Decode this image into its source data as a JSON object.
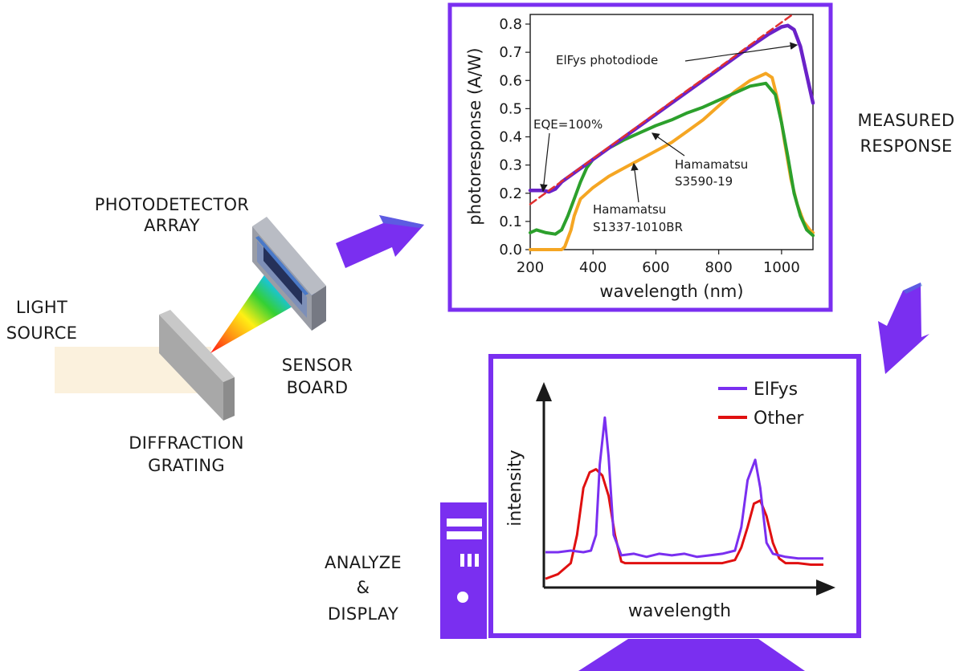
{
  "labels": {
    "light_source": [
      "LIGHT",
      "SOURCE"
    ],
    "photodetector_array": [
      "PHOTODETECTOR",
      "ARRAY"
    ],
    "sensor_board": [
      "SENSOR",
      "BOARD"
    ],
    "diffraction_grating": [
      "DIFFRACTION",
      "GRATING"
    ],
    "measured_response": [
      "MEASURED",
      "RESPONSE"
    ],
    "analyze_display": [
      "ANALYZE",
      "&",
      "DISPLAY"
    ]
  },
  "colors": {
    "accent": "#7a2ff0",
    "elfys": "#6a22c8",
    "hamamatsu_s3590": "#2ca02c",
    "hamamatsu_s1337": "#f5a623",
    "eqe": "#e03030",
    "other": "#e01010"
  },
  "chart_data": [
    {
      "type": "line",
      "xlabel": "wavelength (nm)",
      "ylabel": "photoresponse (A/W)",
      "xlim": [
        200,
        1100
      ],
      "ylim": [
        0,
        0.8
      ],
      "xticks": [
        "200",
        "400",
        "600",
        "800",
        "1000"
      ],
      "yticks": [
        "0.0",
        "0.1",
        "0.2",
        "0.3",
        "0.4",
        "0.5",
        "0.6",
        "0.7",
        "0.8"
      ],
      "annotations": [
        {
          "id": "elfys",
          "text": [
            "ElFys photodiode"
          ]
        },
        {
          "id": "eqe",
          "text": [
            "EQE=100%"
          ]
        },
        {
          "id": "s3590",
          "text": [
            "Hamamatsu",
            "S3590-19"
          ]
        },
        {
          "id": "s1337",
          "text": [
            "Hamamatsu",
            "S1337-1010BR"
          ]
        }
      ],
      "series": [
        {
          "id": "eqe",
          "style": "dashed",
          "x": [
            200,
            300,
            400,
            500,
            600,
            700,
            800,
            900,
            1000,
            1030
          ],
          "y": [
            0.161,
            0.242,
            0.323,
            0.403,
            0.484,
            0.565,
            0.645,
            0.726,
            0.806,
            0.83
          ]
        },
        {
          "id": "elfys",
          "x": [
            200,
            240,
            260,
            280,
            300,
            350,
            400,
            500,
            600,
            700,
            800,
            900,
            960,
            1000,
            1020,
            1040,
            1060,
            1080,
            1100
          ],
          "y": [
            0.21,
            0.21,
            0.205,
            0.215,
            0.24,
            0.28,
            0.32,
            0.4,
            0.48,
            0.56,
            0.64,
            0.72,
            0.765,
            0.79,
            0.795,
            0.78,
            0.72,
            0.62,
            0.52
          ]
        },
        {
          "id": "s3590",
          "x": [
            200,
            220,
            250,
            280,
            300,
            320,
            340,
            360,
            380,
            400,
            450,
            500,
            550,
            600,
            650,
            700,
            750,
            800,
            850,
            900,
            950,
            980,
            1000,
            1020,
            1040,
            1060,
            1080,
            1100
          ],
          "y": [
            0.06,
            0.07,
            0.06,
            0.055,
            0.07,
            0.12,
            0.18,
            0.24,
            0.29,
            0.32,
            0.36,
            0.39,
            0.415,
            0.44,
            0.46,
            0.485,
            0.505,
            0.53,
            0.555,
            0.58,
            0.59,
            0.55,
            0.45,
            0.33,
            0.2,
            0.12,
            0.07,
            0.05
          ]
        },
        {
          "id": "s1337",
          "x": [
            200,
            300,
            310,
            320,
            330,
            340,
            360,
            400,
            450,
            500,
            550,
            600,
            650,
            700,
            750,
            800,
            850,
            900,
            950,
            970,
            990,
            1010,
            1030,
            1050,
            1070,
            1090,
            1100
          ],
          "y": [
            0.0,
            0.0,
            0.01,
            0.04,
            0.07,
            0.12,
            0.18,
            0.22,
            0.26,
            0.29,
            0.32,
            0.35,
            0.38,
            0.42,
            0.46,
            0.51,
            0.56,
            0.6,
            0.625,
            0.61,
            0.52,
            0.38,
            0.25,
            0.16,
            0.1,
            0.07,
            0.06
          ]
        }
      ]
    },
    {
      "type": "line",
      "xlabel": "wavelength",
      "ylabel": "intensity",
      "legend": {
        "placement": "top-right",
        "entries": [
          "ElFys",
          "Other"
        ]
      },
      "series": [
        {
          "name": "ElFys",
          "x": [
            0,
            10,
            20,
            30,
            36,
            40,
            43,
            47,
            50,
            54,
            60,
            70,
            80,
            90,
            100,
            110,
            120,
            130,
            140,
            150,
            155,
            160,
            166,
            170,
            175,
            180,
            190,
            200,
            210,
            220
          ],
          "y": [
            0.19,
            0.19,
            0.2,
            0.19,
            0.2,
            0.3,
            0.75,
            1.05,
            0.8,
            0.3,
            0.17,
            0.18,
            0.16,
            0.18,
            0.17,
            0.18,
            0.16,
            0.17,
            0.18,
            0.2,
            0.35,
            0.65,
            0.78,
            0.6,
            0.25,
            0.18,
            0.16,
            0.15,
            0.15,
            0.15
          ]
        },
        {
          "name": "Other",
          "x": [
            0,
            10,
            20,
            25,
            30,
            35,
            40,
            45,
            50,
            55,
            60,
            63,
            70,
            80,
            100,
            120,
            140,
            150,
            155,
            160,
            165,
            170,
            175,
            180,
            185,
            190,
            200,
            210,
            220
          ],
          "y": [
            0.02,
            0.05,
            0.12,
            0.3,
            0.6,
            0.7,
            0.72,
            0.68,
            0.55,
            0.3,
            0.13,
            0.12,
            0.12,
            0.12,
            0.12,
            0.12,
            0.12,
            0.14,
            0.22,
            0.35,
            0.5,
            0.52,
            0.42,
            0.25,
            0.15,
            0.12,
            0.12,
            0.11,
            0.11
          ]
        }
      ]
    }
  ]
}
